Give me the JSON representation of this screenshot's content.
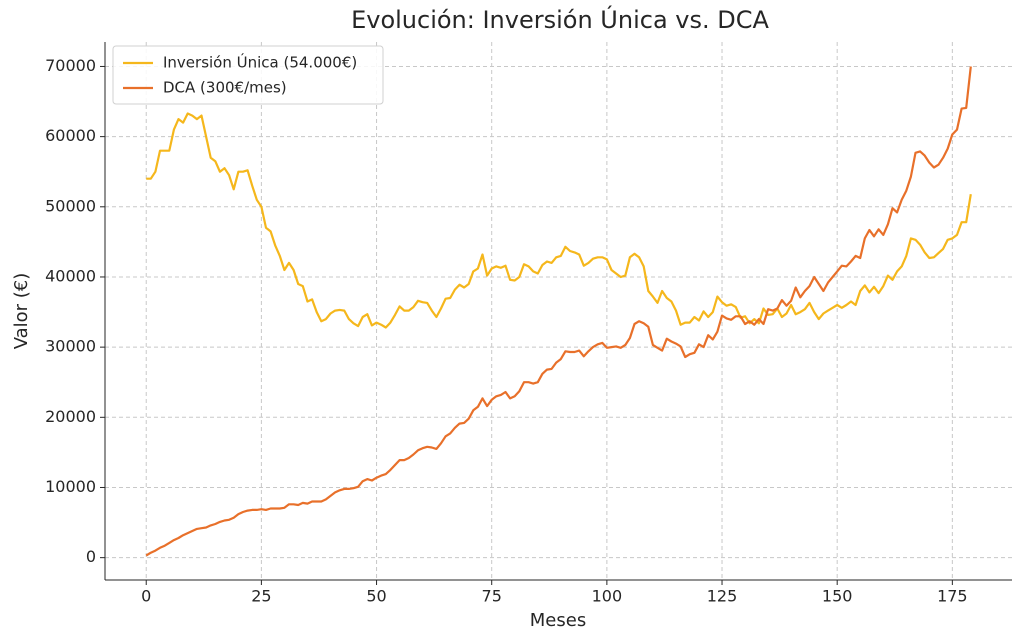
{
  "chart_data": {
    "type": "line",
    "title": "Evolución: Inversión Única vs. DCA",
    "x_label": "Meses",
    "y_label": "Valor (€)",
    "x": [
      0,
      1,
      2,
      3,
      4,
      5,
      6,
      7,
      8,
      9,
      10,
      11,
      12,
      13,
      14,
      15,
      16,
      17,
      18,
      19,
      20,
      21,
      22,
      23,
      24,
      25,
      26,
      27,
      28,
      29,
      30,
      31,
      32,
      33,
      34,
      35,
      36,
      37,
      38,
      39,
      40,
      41,
      42,
      43,
      44,
      45,
      46,
      47,
      48,
      49,
      50,
      51,
      52,
      53,
      54,
      55,
      56,
      57,
      58,
      59,
      60,
      61,
      62,
      63,
      64,
      65,
      66,
      67,
      68,
      69,
      70,
      71,
      72,
      73,
      74,
      75,
      76,
      77,
      78,
      79,
      80,
      81,
      82,
      83,
      84,
      85,
      86,
      87,
      88,
      89,
      90,
      91,
      92,
      93,
      94,
      95,
      96,
      97,
      98,
      99,
      100,
      101,
      102,
      103,
      104,
      105,
      106,
      107,
      108,
      109,
      110,
      111,
      112,
      113,
      114,
      115,
      116,
      117,
      118,
      119,
      120,
      121,
      122,
      123,
      124,
      125,
      126,
      127,
      128,
      129,
      130,
      131,
      132,
      133,
      134,
      135,
      136,
      137,
      138,
      139,
      140,
      141,
      142,
      143,
      144,
      145,
      146,
      147,
      148,
      149,
      150,
      151,
      152,
      153,
      154,
      155,
      156,
      157,
      158,
      159,
      160,
      161,
      162,
      163,
      164,
      165,
      166,
      167,
      168,
      169,
      170,
      171,
      172,
      173,
      174,
      175,
      176,
      177,
      178,
      179
    ],
    "series": [
      {
        "name": "Inversión Única (54.000€)",
        "color": "#f5b71c",
        "values": [
          54000,
          54000,
          55000,
          58000,
          58000,
          58000,
          61000,
          62500,
          62000,
          63300,
          63000,
          62500,
          63000,
          60000,
          57000,
          56500,
          55000,
          55500,
          54500,
          52500,
          55000,
          55000,
          55200,
          53000,
          51000,
          50000,
          47000,
          46500,
          44500,
          43000,
          41000,
          42000,
          41000,
          39000,
          38700,
          36500,
          36800,
          35000,
          33700,
          34000,
          34800,
          35200,
          35300,
          35200,
          34000,
          33400,
          33000,
          34300,
          34700,
          33100,
          33500,
          33200,
          32800,
          33500,
          34600,
          35800,
          35200,
          35200,
          35700,
          36600,
          36400,
          36300,
          35200,
          34300,
          35500,
          36900,
          37000,
          38200,
          38900,
          38500,
          39000,
          40800,
          41200,
          43200,
          40200,
          41200,
          41500,
          41300,
          41600,
          39600,
          39500,
          40000,
          41800,
          41500,
          40800,
          40500,
          41700,
          42200,
          42000,
          42800,
          43000,
          44300,
          43700,
          43500,
          43200,
          41600,
          42000,
          42600,
          42800,
          42800,
          42500,
          41000,
          40500,
          40000,
          40200,
          42800,
          43300,
          42800,
          41500,
          38000,
          37200,
          36300,
          38000,
          37000,
          36500,
          35200,
          33200,
          33500,
          33500,
          34300,
          33800,
          35100,
          34300,
          35000,
          37200,
          36400,
          35900,
          36100,
          35700,
          34200,
          34400,
          33400,
          34000,
          33400,
          35500,
          34600,
          34700,
          35500,
          34300,
          34800,
          36000,
          34700,
          35000,
          35400,
          36300,
          35000,
          34000,
          34800,
          35200,
          35600,
          36000,
          35600,
          36000,
          36500,
          36000,
          38000,
          38800,
          37800,
          38600,
          37700,
          38700,
          40200,
          39600,
          40800,
          41500,
          43000,
          45500,
          45300,
          44600,
          43500,
          42700,
          42800,
          43400,
          44000,
          45300,
          45500,
          46000,
          47800,
          47800,
          51800
        ]
      },
      {
        "name": "DCA (300€/mes)",
        "color": "#e8702a",
        "values": [
          300,
          700,
          1000,
          1400,
          1700,
          2100,
          2500,
          2800,
          3200,
          3500,
          3800,
          4100,
          4200,
          4300,
          4600,
          4800,
          5100,
          5300,
          5400,
          5700,
          6200,
          6500,
          6700,
          6800,
          6800,
          6900,
          6800,
          7000,
          7000,
          7000,
          7100,
          7600,
          7600,
          7500,
          7800,
          7700,
          8000,
          8000,
          8000,
          8300,
          8800,
          9300,
          9600,
          9800,
          9800,
          9900,
          10100,
          10900,
          11200,
          11000,
          11400,
          11700,
          11900,
          12500,
          13200,
          13900,
          13900,
          14200,
          14700,
          15300,
          15600,
          15800,
          15700,
          15500,
          16300,
          17300,
          17700,
          18500,
          19100,
          19200,
          19800,
          21000,
          21500,
          22700,
          21600,
          22500,
          23000,
          23200,
          23600,
          22700,
          23000,
          23700,
          25000,
          25000,
          24800,
          25000,
          26200,
          26800,
          26900,
          27800,
          28300,
          29400,
          29300,
          29300,
          29500,
          28700,
          29400,
          30000,
          30400,
          30600,
          29900,
          30000,
          30100,
          29900,
          30300,
          31300,
          33300,
          33700,
          33400,
          32900,
          30300,
          29900,
          29500,
          31200,
          30800,
          30500,
          30100,
          28600,
          29000,
          29200,
          30400,
          30000,
          31700,
          31100,
          32200,
          34500,
          34100,
          33900,
          34400,
          34400,
          33300,
          33700,
          33200,
          34000,
          33300,
          35400,
          35200,
          35500,
          36700,
          35900,
          36600,
          38500,
          37100,
          38000,
          38700,
          40000,
          39000,
          38000,
          39200,
          40000,
          40800,
          41600,
          41500,
          42200,
          43000,
          42700,
          45500,
          46700,
          45800,
          46800,
          46000,
          47500,
          49800,
          49200,
          51000,
          52300,
          54300,
          57700,
          57900,
          57300,
          56300,
          55600,
          56000,
          57000,
          58300,
          60300,
          61000,
          64000,
          64100,
          70000
        ]
      }
    ],
    "xlim": [
      -8.95,
      187.95
    ],
    "ylim": [
      -3185,
      73485
    ],
    "xticks": [
      0,
      25,
      50,
      75,
      100,
      125,
      150,
      175
    ],
    "yticks": [
      0,
      10000,
      20000,
      30000,
      40000,
      50000,
      60000,
      70000
    ],
    "grid": true,
    "legend": "upper left"
  }
}
